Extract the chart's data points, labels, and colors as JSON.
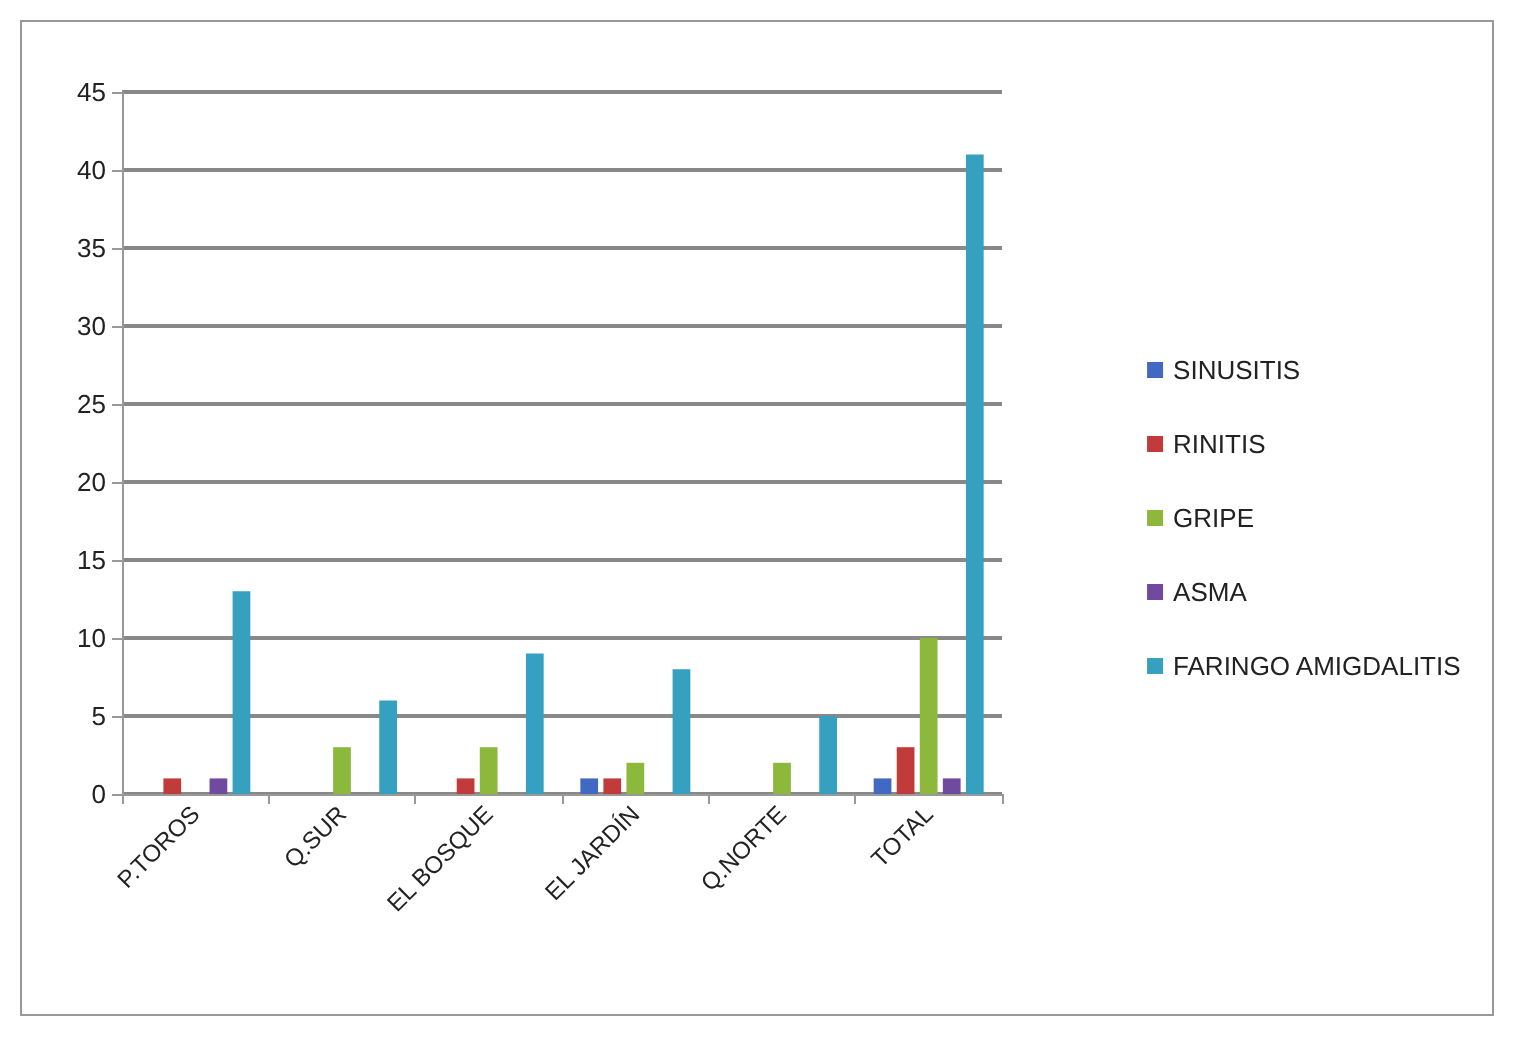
{
  "chart_data": {
    "type": "bar",
    "categories": [
      "P.TOROS",
      "Q.SUR",
      "EL BOSQUE",
      "EL JARDÍN",
      "Q.NORTE",
      "TOTAL"
    ],
    "series": [
      {
        "name": "SINUSITIS",
        "color": "#4169c4",
        "values": [
          0,
          0,
          0,
          1,
          0,
          1
        ]
      },
      {
        "name": "RINITIS",
        "color": "#c23b3b",
        "values": [
          1,
          0,
          1,
          1,
          0,
          3
        ]
      },
      {
        "name": "GRIPE",
        "color": "#8cb83c",
        "values": [
          0,
          3,
          3,
          2,
          2,
          10
        ]
      },
      {
        "name": "ASMA",
        "color": "#6f4a9e",
        "values": [
          1,
          0,
          0,
          0,
          0,
          1
        ]
      },
      {
        "name": "FARINGO AMIGDALITIS",
        "color": "#35a0c0",
        "values": [
          13,
          6,
          9,
          8,
          5,
          41
        ]
      }
    ],
    "ylim": [
      0,
      45
    ],
    "yticks": [
      0,
      5,
      10,
      15,
      20,
      25,
      30,
      35,
      40,
      45
    ],
    "grid": "y",
    "legend": "right"
  }
}
